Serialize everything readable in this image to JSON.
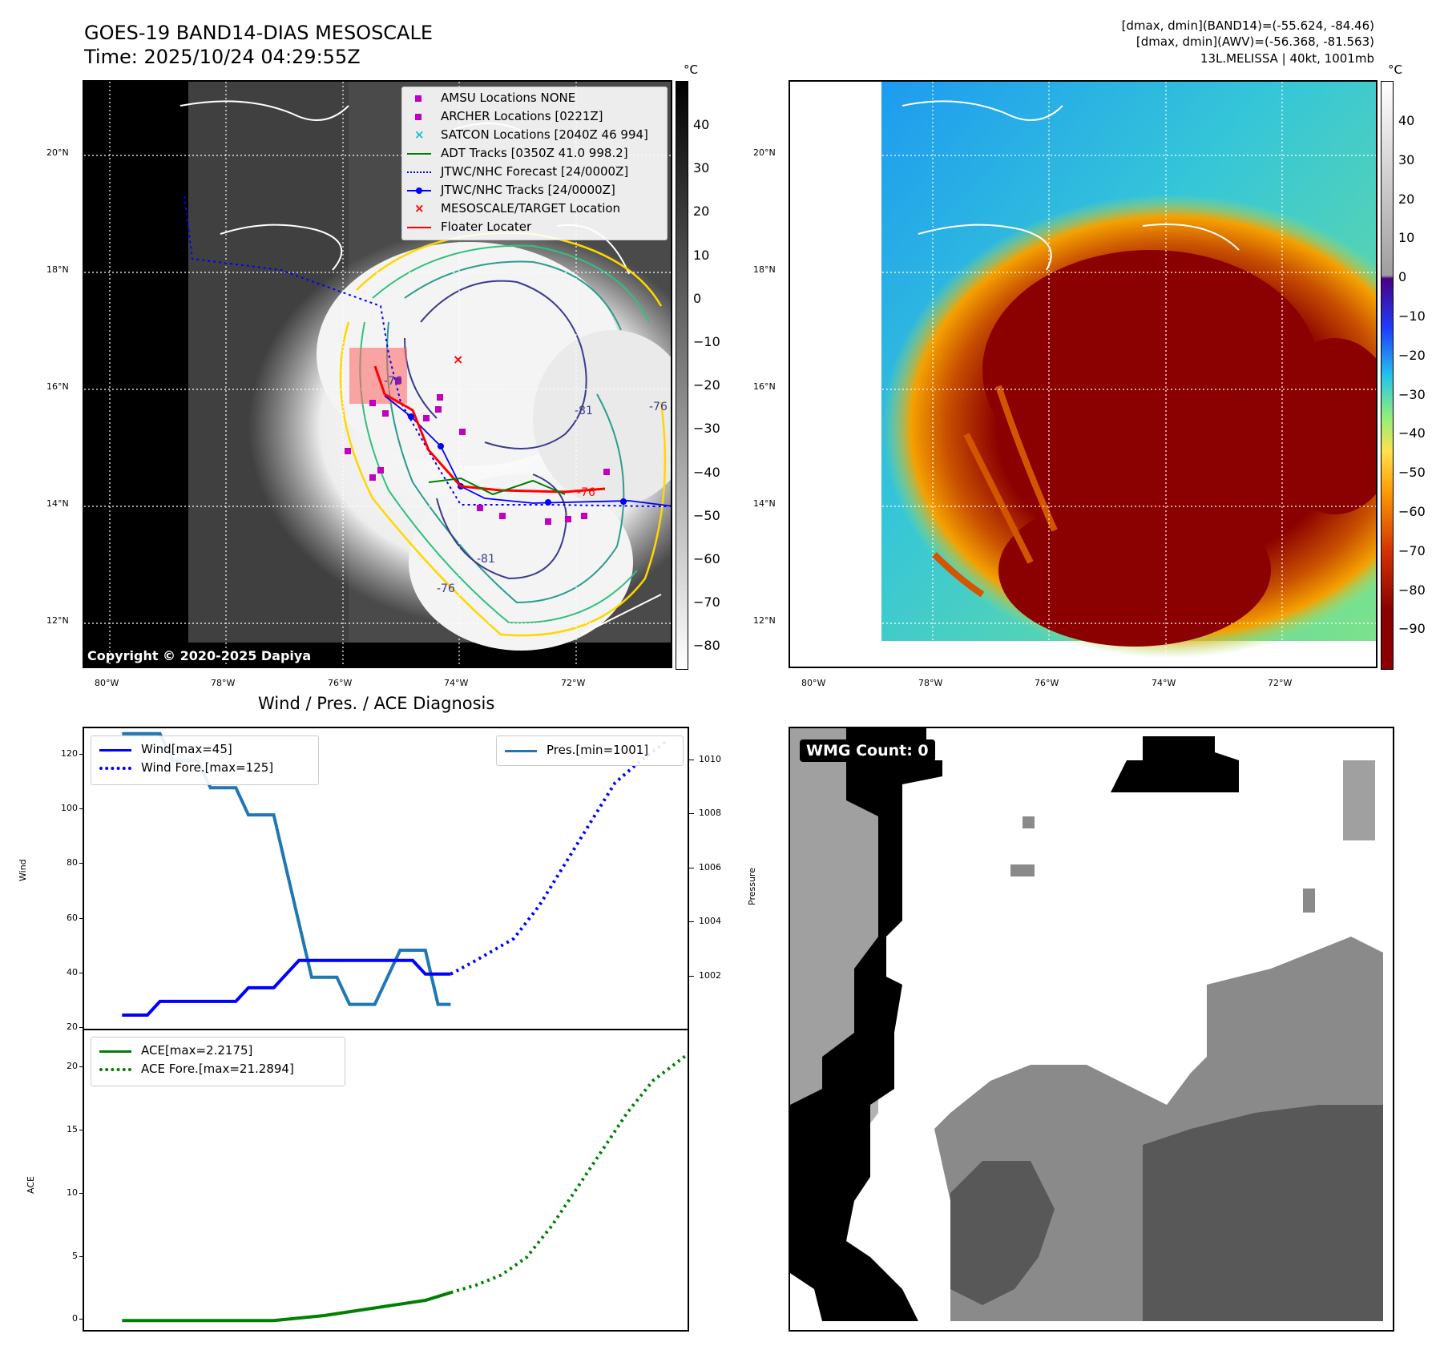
{
  "header": {
    "title_line1": "GOES-19 BAND14-DIAS MESOSCALE",
    "title_line2": "Time: 2025/10/24 04:29:55Z",
    "info_line1": "[dmax, dmin](BAND14)=(-55.624, -84.46)",
    "info_line2": "[dmax, dmin](AWV)=(-56.368, -81.563)",
    "info_line3": "13L.MELISSA | 40kt, 1001mb"
  },
  "map": {
    "lon_labels": [
      "80°W",
      "78°W",
      "76°W",
      "74°W",
      "72°W"
    ],
    "lat_labels": [
      "20°N",
      "18°N",
      "16°N",
      "14°N",
      "12°N"
    ],
    "copyright": "Copyright © 2020-2025 Dapiya",
    "contour_labels": [
      "-81",
      "-76",
      "-76",
      "-81",
      "-76",
      "-76"
    ],
    "legend": [
      {
        "label": "AMSU Locations NONE",
        "marker": "square",
        "color": "#bf00bf"
      },
      {
        "label": "ARCHER Locations [0221Z]",
        "marker": "square",
        "color": "#bf00bf"
      },
      {
        "label": "SATCON Locations [2040Z 46 994]",
        "marker": "x",
        "color": "#17becf"
      },
      {
        "label": "ADT Tracks [0350Z 41.0 998.2]",
        "marker": "line",
        "color": "#008000"
      },
      {
        "label": "JTWC/NHC Forecast [24/0000Z]",
        "marker": "dotted",
        "color": "#0000ff"
      },
      {
        "label": "JTWC/NHC Tracks [24/0000Z]",
        "marker": "line-dot",
        "color": "#0000ff"
      },
      {
        "label": "MESOSCALE/TARGET Location",
        "marker": "x",
        "color": "#ff0000"
      },
      {
        "label": "Floater Locater",
        "marker": "line",
        "color": "#ff0000"
      }
    ]
  },
  "colorbar_gray": {
    "unit": "°C",
    "ticks": [
      "40",
      "30",
      "20",
      "10",
      "0",
      "−10",
      "−20",
      "−30",
      "−40",
      "−50",
      "−60",
      "−70",
      "−80"
    ]
  },
  "colorbar_color": {
    "unit": "°C",
    "ticks": [
      "40",
      "30",
      "20",
      "10",
      "0",
      "−10",
      "−20",
      "−30",
      "−40",
      "−50",
      "−60",
      "−70",
      "−80",
      "−90"
    ]
  },
  "wind_panel": {
    "title": "Wind / Pres. / ACE Diagnosis",
    "ylabel_left": "Wind",
    "ylabel_right": "Pressure",
    "left_ticks": [
      "120",
      "100",
      "80",
      "60",
      "40",
      "20"
    ],
    "right_ticks": [
      "1010",
      "1008",
      "1006",
      "1004",
      "1002"
    ],
    "legend_wind": "Wind[max=45]",
    "legend_wind_fore": "Wind Fore.[max=125]",
    "legend_pres": "Pres.[min=1001]"
  },
  "ace_panel": {
    "ylabel": "ACE",
    "ticks": [
      "20",
      "15",
      "10",
      "5",
      "0"
    ],
    "legend_ace": "ACE[max=2.2175]",
    "legend_ace_fore": "ACE Fore.[max=21.2894]"
  },
  "wmg_panel": {
    "label": "WMG Count: 0"
  },
  "chart_data": [
    {
      "type": "line",
      "title": "Wind / Pres. / ACE Diagnosis",
      "x": [
        0,
        1,
        2,
        3,
        4,
        5,
        6,
        7,
        8,
        9,
        10,
        11,
        12,
        13,
        14,
        15,
        16,
        17,
        18,
        19,
        20,
        21,
        22,
        23,
        24,
        25,
        26
      ],
      "ylabel": "Wind",
      "ylim": [
        20,
        130
      ],
      "series": [
        {
          "name": "Wind[max=45]",
          "color": "#0000ff",
          "x": [
            0,
            1,
            2,
            3,
            4,
            5,
            6,
            7,
            8,
            9,
            10,
            11,
            12,
            13,
            14,
            15,
            16,
            17,
            18,
            19,
            20,
            21,
            22,
            23,
            24,
            25,
            26
          ],
          "values": [
            25,
            25,
            25,
            30,
            30,
            30,
            30,
            30,
            30,
            30,
            35,
            35,
            35,
            40,
            45,
            45,
            45,
            45,
            45,
            45,
            45,
            45,
            45,
            45,
            40,
            40,
            40
          ]
        },
        {
          "name": "Wind Fore.[max=125]",
          "color": "#0000ff",
          "style": "dotted",
          "x": [
            26,
            28,
            31,
            33,
            35,
            37,
            39,
            41,
            43
          ],
          "values": [
            40,
            45,
            53,
            65,
            80,
            95,
            110,
            118,
            125
          ]
        }
      ]
    },
    {
      "type": "line",
      "ylabel": "Pressure",
      "ylim": [
        1000.1,
        1011.2
      ],
      "series": [
        {
          "name": "Pres.[min=1001]",
          "color": "#1f77b4",
          "x": [
            0,
            2,
            3,
            4,
            5,
            6,
            7,
            8,
            9,
            10,
            11,
            12,
            13,
            14,
            15,
            16,
            17,
            18,
            19,
            20,
            21,
            22,
            23,
            24,
            25,
            26
          ],
          "values": [
            1011,
            1011,
            1011,
            1010,
            1010,
            1010,
            1009,
            1009,
            1009,
            1008,
            1008,
            1008,
            1006,
            1004,
            1002,
            1002,
            1002,
            1001,
            1001,
            1001,
            1002,
            1003,
            1003,
            1003,
            1001,
            1001
          ]
        }
      ]
    },
    {
      "type": "line",
      "ylabel": "ACE",
      "ylim": [
        -1,
        23
      ],
      "series": [
        {
          "name": "ACE[max=2.2175]",
          "color": "#008000",
          "x": [
            0,
            4,
            8,
            10,
            12,
            16,
            20,
            24,
            26
          ],
          "values": [
            0,
            0,
            0,
            0,
            0,
            0.4,
            1.0,
            1.6,
            2.2175
          ]
        },
        {
          "name": "ACE Fore.[max=21.2894]",
          "color": "#008000",
          "style": "dotted",
          "x": [
            26,
            28,
            30,
            32,
            34,
            36,
            38,
            40,
            42,
            45
          ],
          "values": [
            2.2175,
            2.8,
            3.6,
            5,
            7.5,
            10.5,
            13.5,
            16.5,
            19,
            21.2894
          ]
        }
      ]
    }
  ]
}
